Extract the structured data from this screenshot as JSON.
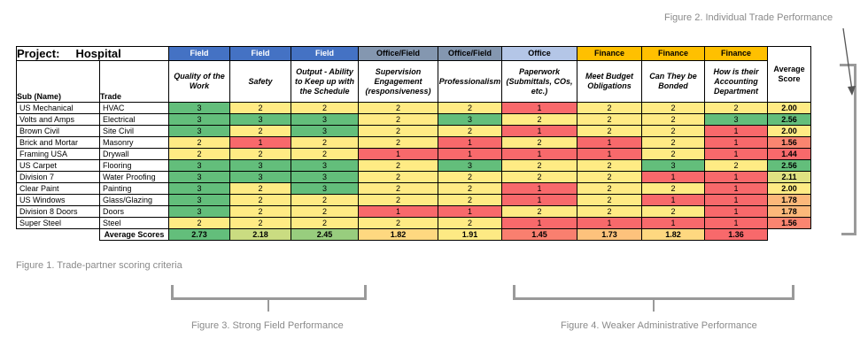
{
  "captions": {
    "figure2": "Figure 2. Individual Trade Performance",
    "figure1": "Figure 1. Trade-partner scoring criteria",
    "figure3": "Figure 3. Strong Field Performance",
    "figure4": "Figure 4. Weaker Administrative Performance"
  },
  "colors": {
    "score_1": "#f8696b",
    "score_2": "#ffeb84",
    "score_3": "#63be7b",
    "field": "#4472c4",
    "office_field": "#8497b0",
    "office": "#b4c6e7",
    "finance": "#ffc000"
  },
  "table": {
    "project_label": "Project:",
    "project_name": "Hospital",
    "col_sub": "Sub (Name)",
    "col_trade": "Trade",
    "avg_header": "Average Score",
    "categories": [
      "Field",
      "Field",
      "Field",
      "Office/Field",
      "Office/Field",
      "Office",
      "Finance",
      "Finance",
      "Finance"
    ],
    "criteria": [
      "Quality of the Work",
      "Safety",
      "Output - Ability to Keep up with the Schedule",
      "Supervision Engagement (responsiveness)",
      "Professionalism",
      "Paperwork (Submittals, COs, etc.)",
      "Meet Budget Obligations",
      "Can They be Bonded",
      "How is their Accounting Department"
    ],
    "rows": [
      {
        "sub": "US Mechanical",
        "trade": "HVAC",
        "scores": [
          "3",
          "2",
          "2",
          "2",
          "2",
          "1",
          "2",
          "2",
          "2"
        ],
        "avg": "2.00"
      },
      {
        "sub": "Volts and Amps",
        "trade": "Electrical",
        "scores": [
          "3",
          "3",
          "3",
          "2",
          "3",
          "2",
          "2",
          "2",
          "3"
        ],
        "avg": "2.56"
      },
      {
        "sub": "Brown Civil",
        "trade": "Site Civil",
        "scores": [
          "3",
          "2",
          "3",
          "2",
          "2",
          "1",
          "2",
          "2",
          "1"
        ],
        "avg": "2.00"
      },
      {
        "sub": "Brick and Mortar",
        "trade": "Masonry",
        "scores": [
          "2",
          "1",
          "2",
          "2",
          "1",
          "2",
          "1",
          "2",
          "1"
        ],
        "avg": "1.56"
      },
      {
        "sub": "Framing USA",
        "trade": "Drywall",
        "scores": [
          "2",
          "2",
          "2",
          "1",
          "1",
          "1",
          "1",
          "2",
          "1"
        ],
        "avg": "1.44"
      },
      {
        "sub": "US Carpet",
        "trade": "Flooring",
        "scores": [
          "3",
          "3",
          "3",
          "2",
          "3",
          "2",
          "2",
          "3",
          "2"
        ],
        "avg": "2.56"
      },
      {
        "sub": "Division 7",
        "trade": "Water Proofing",
        "scores": [
          "3",
          "3",
          "3",
          "2",
          "2",
          "2",
          "2",
          "1",
          "1"
        ],
        "avg": "2.11"
      },
      {
        "sub": "Clear Paint",
        "trade": "Painting",
        "scores": [
          "3",
          "2",
          "3",
          "2",
          "2",
          "1",
          "2",
          "2",
          "1"
        ],
        "avg": "2.00"
      },
      {
        "sub": "US Windows",
        "trade": "Glass/Glazing",
        "scores": [
          "3",
          "2",
          "2",
          "2",
          "2",
          "1",
          "2",
          "1",
          "1"
        ],
        "avg": "1.78"
      },
      {
        "sub": "Division 8 Doors",
        "trade": "Doors",
        "scores": [
          "3",
          "2",
          "2",
          "1",
          "1",
          "2",
          "2",
          "2",
          "1"
        ],
        "avg": "1.78"
      },
      {
        "sub": "Super Steel",
        "trade": "Steel",
        "scores": [
          "2",
          "2",
          "2",
          "2",
          "2",
          "1",
          "1",
          "1",
          "1"
        ],
        "avg": "1.56"
      }
    ],
    "footer_label": "Average Scores",
    "footer_values": [
      "2.73",
      "2.18",
      "2.45",
      "1.82",
      "1.91",
      "1.45",
      "1.73",
      "1.82",
      "1.36"
    ]
  }
}
